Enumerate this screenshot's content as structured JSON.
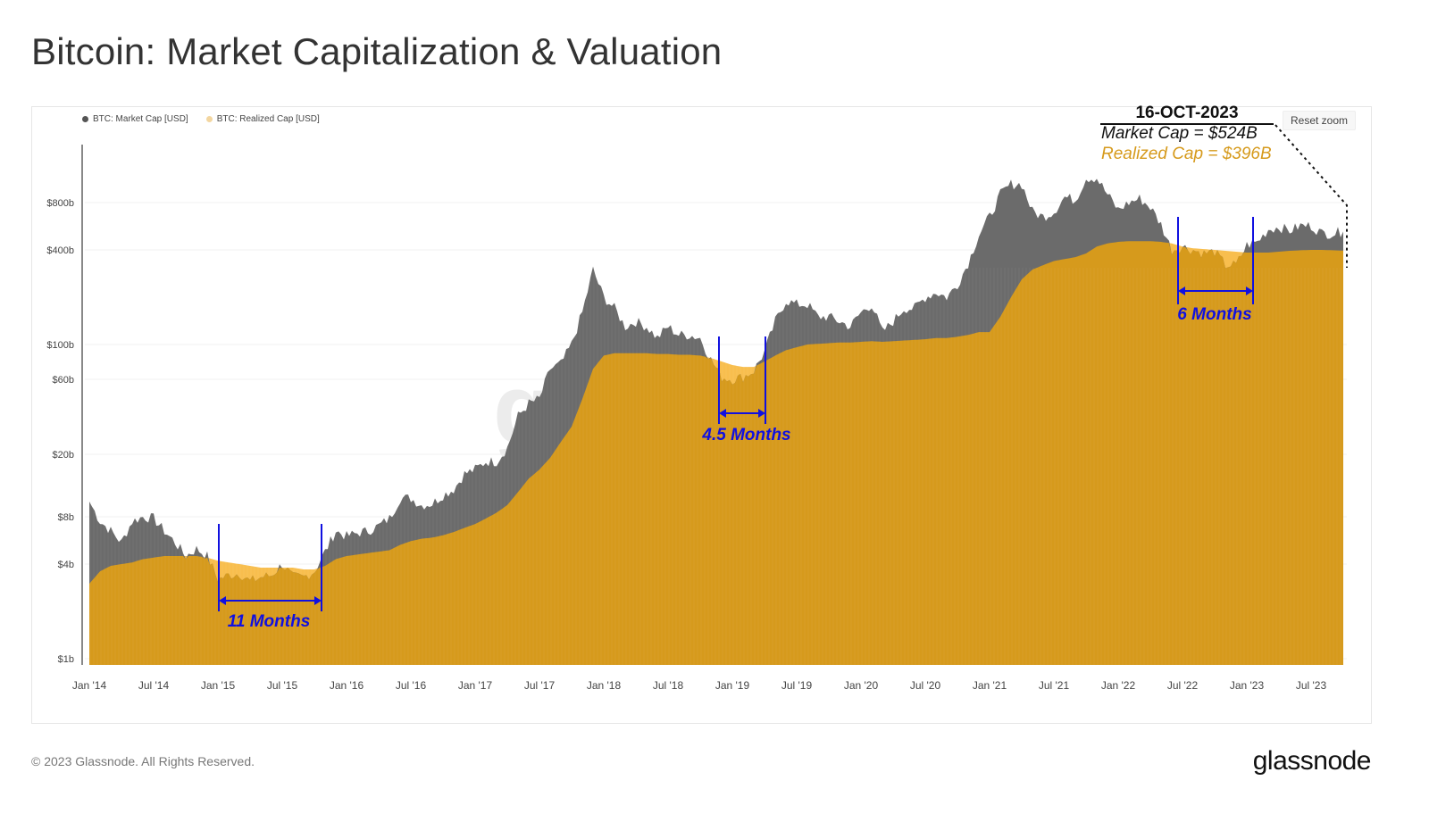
{
  "title": "Bitcoin: Market Capitalization & Valuation",
  "reset_zoom": "Reset zoom",
  "footer": "© 2023 Glassnode. All Rights Reserved.",
  "logo": "glassnode",
  "watermark": "g",
  "annotation": {
    "date": "16-OCT-2023",
    "market_cap": "Market Cap = $524B",
    "realized_cap": "Realized Cap = $396B"
  },
  "periods": [
    {
      "label": "11 Months"
    },
    {
      "label": "4.5 Months"
    },
    {
      "label": "6 Months"
    }
  ],
  "colors": {
    "market_cap": "#6b6b6b",
    "realized_cap": "#d69a1c",
    "realized_above_market": "#f8be4e",
    "annotation": "#1010e0"
  },
  "chart_data": {
    "type": "area",
    "y_scale": "log",
    "ylim_billions": [
      0.85,
      1900
    ],
    "grid": true,
    "legend_position": "top-left",
    "legend": [
      "BTC: Market Cap [USD]",
      "BTC: Realized Cap [USD]"
    ],
    "y_ticks": [
      {
        "value": 1,
        "label": "$1b"
      },
      {
        "value": 4,
        "label": "$4b"
      },
      {
        "value": 8,
        "label": "$8b"
      },
      {
        "value": 20,
        "label": "$20b"
      },
      {
        "value": 60,
        "label": "$60b"
      },
      {
        "value": 100,
        "label": "$100b"
      },
      {
        "value": 400,
        "label": "$400b"
      },
      {
        "value": 800,
        "label": "$800b"
      }
    ],
    "x_ticks": [
      "Jan '14",
      "Jul '14",
      "Jan '15",
      "Jul '15",
      "Jan '16",
      "Jul '16",
      "Jan '17",
      "Jul '17",
      "Jan '18",
      "Jul '18",
      "Jan '19",
      "Jul '19",
      "Jan '20",
      "Jul '20",
      "Jan '21",
      "Jul '21",
      "Jan '22",
      "Jul '22",
      "Jan '23",
      "Jul '23"
    ],
    "x_start": "2014-01",
    "x_frequency": "monthly",
    "units": "USD billions",
    "series": [
      {
        "name": "BTC: Market Cap [USD]",
        "values": [
          10,
          7.5,
          6.5,
          5.5,
          7.5,
          8,
          7.8,
          6.5,
          5.5,
          4.5,
          5,
          4.5,
          3.2,
          3.4,
          3.5,
          3.1,
          3.3,
          3.4,
          4.0,
          3.3,
          3.3,
          3.6,
          4.8,
          6.5,
          6,
          6.3,
          6.5,
          7,
          7.8,
          10.5,
          10.5,
          9.5,
          9.7,
          11,
          12,
          15,
          16,
          18,
          18,
          22,
          35,
          42,
          45,
          70,
          75,
          100,
          160,
          300,
          200,
          170,
          130,
          140,
          130,
          110,
          130,
          115,
          115,
          110,
          80,
          62,
          60,
          62,
          68,
          90,
          140,
          190,
          180,
          180,
          150,
          150,
          140,
          130,
          160,
          180,
          120,
          140,
          170,
          170,
          200,
          215,
          200,
          240,
          330,
          500,
          650,
          900,
          1050,
          1050,
          700,
          650,
          700,
          870,
          830,
          1150,
          1150,
          900,
          720,
          800,
          850,
          750,
          580,
          400,
          420,
          400,
          380,
          390,
          320,
          320,
          430,
          450,
          540,
          560,
          530,
          570,
          570,
          510,
          510,
          524
        ]
      },
      {
        "name": "BTC: Realized Cap [USD]",
        "values": [
          3.0,
          3.6,
          3.9,
          4.0,
          4.1,
          4.3,
          4.4,
          4.5,
          4.5,
          4.5,
          4.5,
          4.4,
          4.2,
          4.1,
          4.0,
          3.9,
          3.8,
          3.8,
          3.8,
          3.8,
          3.7,
          3.7,
          3.9,
          4.3,
          4.5,
          4.6,
          4.7,
          4.8,
          4.9,
          5.3,
          5.6,
          5.8,
          5.9,
          6.1,
          6.4,
          6.8,
          7.2,
          7.8,
          8.5,
          9.5,
          11.5,
          14,
          16,
          19,
          24,
          30,
          45,
          70,
          85,
          88,
          88,
          88,
          88,
          87,
          87,
          86,
          86,
          85,
          82,
          78,
          74,
          72,
          72,
          78,
          85,
          92,
          96,
          100,
          101,
          102,
          103,
          103,
          104,
          105,
          104,
          105,
          106,
          107,
          108,
          110,
          110,
          112,
          115,
          120,
          120,
          150,
          200,
          260,
          300,
          320,
          340,
          350,
          360,
          380,
          420,
          440,
          450,
          455,
          455,
          455,
          450,
          440,
          420,
          410,
          405,
          400,
          395,
          390,
          385,
          385,
          385,
          390,
          395,
          398,
          400,
          400,
          398,
          396
        ]
      }
    ]
  }
}
